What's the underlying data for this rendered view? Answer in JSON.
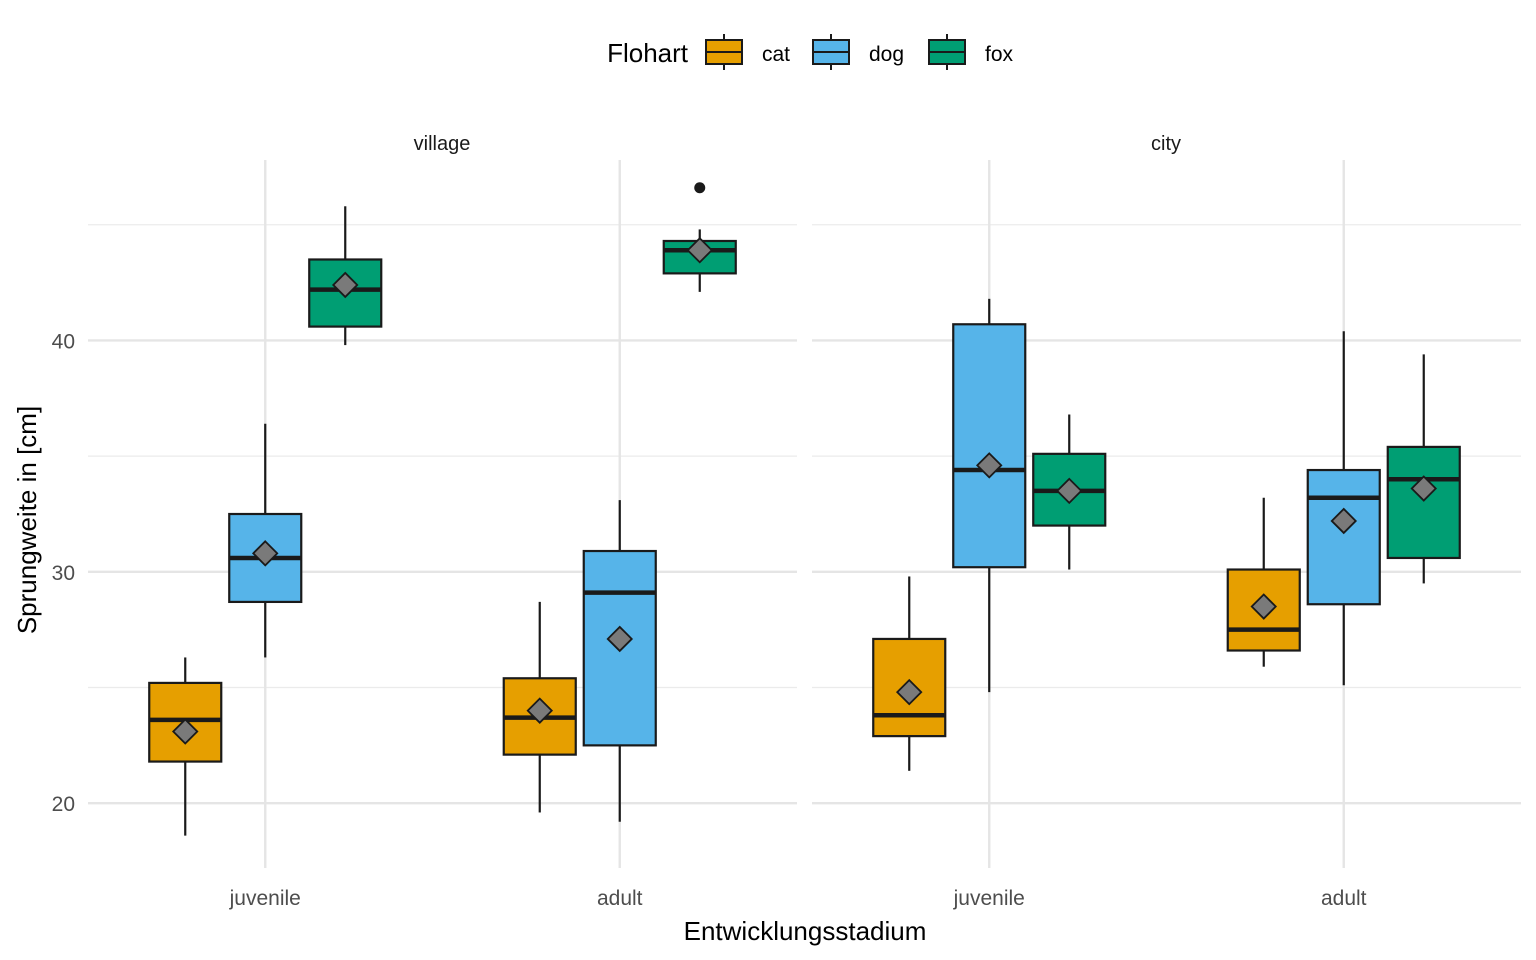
{
  "chart_data": {
    "type": "boxplot",
    "xlabel": "Entwicklungsstadium",
    "ylabel": "Sprungweite in [cm]",
    "ylim": [
      17.2,
      47.8
    ],
    "yticks": [
      20,
      30,
      40
    ],
    "grid": true,
    "legend_title": "Flohart",
    "legend_position": "top",
    "categories": [
      "juvenile",
      "adult"
    ],
    "series": [
      {
        "name": "cat",
        "color": "#E69F00"
      },
      {
        "name": "dog",
        "color": "#56B4E9"
      },
      {
        "name": "fox",
        "color": "#009E73"
      }
    ],
    "mean_marker": "diamond",
    "panels": [
      {
        "label": "village",
        "boxes": [
          {
            "category": "juvenile",
            "series": "cat",
            "whisker_low": 18.6,
            "q1": 21.8,
            "median": 23.6,
            "q3": 25.2,
            "whisker_high": 26.3,
            "mean": 23.1,
            "outliers": []
          },
          {
            "category": "juvenile",
            "series": "dog",
            "whisker_low": 26.3,
            "q1": 28.7,
            "median": 30.6,
            "q3": 32.5,
            "whisker_high": 36.4,
            "mean": 30.8,
            "outliers": []
          },
          {
            "category": "juvenile",
            "series": "fox",
            "whisker_low": 39.8,
            "q1": 40.6,
            "median": 42.2,
            "q3": 43.5,
            "whisker_high": 45.8,
            "mean": 42.4,
            "outliers": []
          },
          {
            "category": "adult",
            "series": "cat",
            "whisker_low": 19.6,
            "q1": 22.1,
            "median": 23.7,
            "q3": 25.4,
            "whisker_high": 28.7,
            "mean": 24.0,
            "outliers": []
          },
          {
            "category": "adult",
            "series": "dog",
            "whisker_low": 19.2,
            "q1": 22.5,
            "median": 29.1,
            "q3": 30.9,
            "whisker_high": 33.1,
            "mean": 27.1,
            "outliers": []
          },
          {
            "category": "adult",
            "series": "fox",
            "whisker_low": 42.1,
            "q1": 42.9,
            "median": 43.9,
            "q3": 44.3,
            "whisker_high": 44.8,
            "mean": 43.9,
            "outliers": [
              46.6
            ]
          }
        ]
      },
      {
        "label": "city",
        "boxes": [
          {
            "category": "juvenile",
            "series": "cat",
            "whisker_low": 21.4,
            "q1": 22.9,
            "median": 23.8,
            "q3": 27.1,
            "whisker_high": 29.8,
            "mean": 24.8,
            "outliers": []
          },
          {
            "category": "juvenile",
            "series": "dog",
            "whisker_low": 24.8,
            "q1": 30.2,
            "median": 34.4,
            "q3": 40.7,
            "whisker_high": 41.8,
            "mean": 34.6,
            "outliers": []
          },
          {
            "category": "juvenile",
            "series": "fox",
            "whisker_low": 30.1,
            "q1": 32.0,
            "median": 33.5,
            "q3": 35.1,
            "whisker_high": 36.8,
            "mean": 33.5,
            "outliers": []
          },
          {
            "category": "adult",
            "series": "cat",
            "whisker_low": 25.9,
            "q1": 26.6,
            "median": 27.5,
            "q3": 30.1,
            "whisker_high": 33.2,
            "mean": 28.5,
            "outliers": []
          },
          {
            "category": "adult",
            "series": "dog",
            "whisker_low": 25.1,
            "q1": 28.6,
            "median": 33.2,
            "q3": 34.4,
            "whisker_high": 40.4,
            "mean": 32.2,
            "outliers": []
          },
          {
            "category": "adult",
            "series": "fox",
            "whisker_low": 29.5,
            "q1": 30.6,
            "median": 34.0,
            "q3": 35.4,
            "whisker_high": 39.4,
            "mean": 33.6,
            "outliers": []
          }
        ]
      }
    ]
  }
}
